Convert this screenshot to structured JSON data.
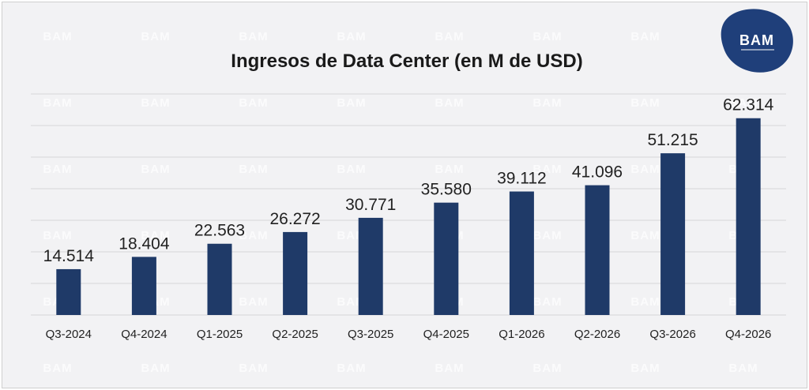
{
  "logo": {
    "text": "BAM",
    "color": "#1f3f7a"
  },
  "colors": {
    "bar": "#1f3a68",
    "grid": "#d6d6d9",
    "background": "#f2f2f4"
  },
  "chart_data": {
    "type": "bar",
    "title": "Ingresos de Data Center (en M de USD)",
    "xlabel": "",
    "ylabel": "",
    "grid": true,
    "categories": [
      "Q3-2024",
      "Q4-2024",
      "Q1-2025",
      "Q2-2025",
      "Q3-2025",
      "Q4-2025",
      "Q1-2026",
      "Q2-2026",
      "Q3-2026",
      "Q4-2026"
    ],
    "values": [
      14514,
      18404,
      22563,
      26272,
      30771,
      35580,
      39112,
      41096,
      51215,
      62314
    ],
    "value_labels": [
      "14.514",
      "18.404",
      "22.563",
      "26.272",
      "30.771",
      "35.580",
      "39.112",
      "41.096",
      "51.215",
      "62.314"
    ],
    "ylim": [
      0,
      70000
    ]
  }
}
